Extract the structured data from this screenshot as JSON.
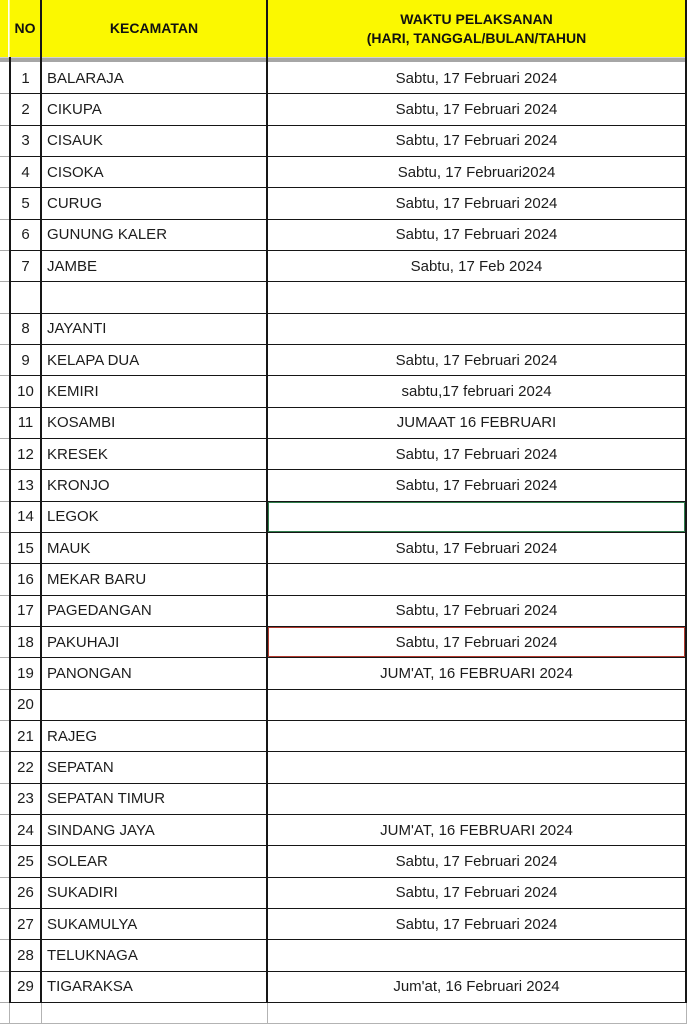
{
  "colors": {
    "header_bg": "#fbf800",
    "green_highlight": "#2e7d4b",
    "red_highlight": "#b23a2e",
    "divider_gray": "#a6a6a6",
    "grid_black": "#161616"
  },
  "header": {
    "no": "NO",
    "kecamatan": "KECAMATAN",
    "waktu_line1": "WAKTU PELAKSANAN",
    "waktu_line2": "(HARI, TANGGAL/BULAN/TAHUN"
  },
  "rows": [
    {
      "no": "1",
      "kecamatan": "BALARAJA",
      "waktu": "Sabtu, 17 Februari 2024",
      "highlight": ""
    },
    {
      "no": "2",
      "kecamatan": "CIKUPA",
      "waktu": "Sabtu, 17 Februari 2024",
      "highlight": ""
    },
    {
      "no": "3",
      "kecamatan": "CISAUK",
      "waktu": "Sabtu, 17 Februari 2024",
      "highlight": ""
    },
    {
      "no": "4",
      "kecamatan": "CISOKA",
      "waktu": "Sabtu, 17 Februari2024",
      "highlight": ""
    },
    {
      "no": "5",
      "kecamatan": "CURUG",
      "waktu": "Sabtu, 17 Februari 2024",
      "highlight": ""
    },
    {
      "no": "6",
      "kecamatan": "GUNUNG KALER",
      "waktu": "Sabtu, 17 Februari 2024",
      "highlight": ""
    },
    {
      "no": "7",
      "kecamatan": "JAMBE",
      "waktu": "Sabtu, 17 Feb 2024",
      "highlight": ""
    },
    {
      "no": "",
      "kecamatan": "",
      "waktu": "",
      "highlight": ""
    },
    {
      "no": "8",
      "kecamatan": "JAYANTI",
      "waktu": "",
      "highlight": ""
    },
    {
      "no": "9",
      "kecamatan": "KELAPA DUA",
      "waktu": "Sabtu, 17 Februari 2024",
      "highlight": ""
    },
    {
      "no": "10",
      "kecamatan": "KEMIRI",
      "waktu": "sabtu,17 februari 2024",
      "highlight": ""
    },
    {
      "no": "11",
      "kecamatan": "KOSAMBI",
      "waktu": "JUMAAT 16 FEBRUARI",
      "highlight": ""
    },
    {
      "no": "12",
      "kecamatan": "KRESEK",
      "waktu": "Sabtu, 17 Februari 2024",
      "highlight": ""
    },
    {
      "no": "13",
      "kecamatan": "KRONJO",
      "waktu": "Sabtu, 17 Februari 2024",
      "highlight": ""
    },
    {
      "no": "14",
      "kecamatan": "LEGOK",
      "waktu": "",
      "highlight": "green"
    },
    {
      "no": "15",
      "kecamatan": "MAUK",
      "waktu": "Sabtu, 17 Februari 2024",
      "highlight": ""
    },
    {
      "no": "16",
      "kecamatan": "MEKAR BARU",
      "waktu": "",
      "highlight": ""
    },
    {
      "no": "17",
      "kecamatan": "PAGEDANGAN",
      "waktu": "Sabtu, 17 Februari 2024",
      "highlight": ""
    },
    {
      "no": "18",
      "kecamatan": "PAKUHAJI",
      "waktu": "Sabtu, 17 Februari 2024",
      "highlight": "red"
    },
    {
      "no": "19",
      "kecamatan": "PANONGAN",
      "waktu": "JUM'AT, 16 FEBRUARI 2024",
      "highlight": ""
    },
    {
      "no": "20",
      "kecamatan": "",
      "waktu": "",
      "highlight": ""
    },
    {
      "no": "21",
      "kecamatan": "RAJEG",
      "waktu": "",
      "highlight": ""
    },
    {
      "no": "22",
      "kecamatan": "SEPATAN",
      "waktu": "",
      "highlight": ""
    },
    {
      "no": "23",
      "kecamatan": "SEPATAN TIMUR",
      "waktu": "",
      "highlight": ""
    },
    {
      "no": "24",
      "kecamatan": "SINDANG JAYA",
      "waktu": "JUM'AT, 16 FEBRUARI 2024",
      "highlight": ""
    },
    {
      "no": "25",
      "kecamatan": "SOLEAR",
      "waktu": "Sabtu, 17 Februari 2024",
      "highlight": ""
    },
    {
      "no": "26",
      "kecamatan": "SUKADIRI",
      "waktu": "Sabtu, 17 Februari 2024",
      "highlight": ""
    },
    {
      "no": "27",
      "kecamatan": "SUKAMULYA",
      "waktu": "Sabtu, 17 Februari 2024",
      "highlight": ""
    },
    {
      "no": "28",
      "kecamatan": "TELUKNAGA",
      "waktu": "",
      "highlight": ""
    },
    {
      "no": "29",
      "kecamatan": "TIGARAKSA",
      "waktu": "Jum'at, 16 Februari 2024",
      "highlight": ""
    },
    {
      "no": "",
      "kecamatan": "",
      "waktu": "",
      "highlight": "",
      "variant": "trailing"
    }
  ]
}
